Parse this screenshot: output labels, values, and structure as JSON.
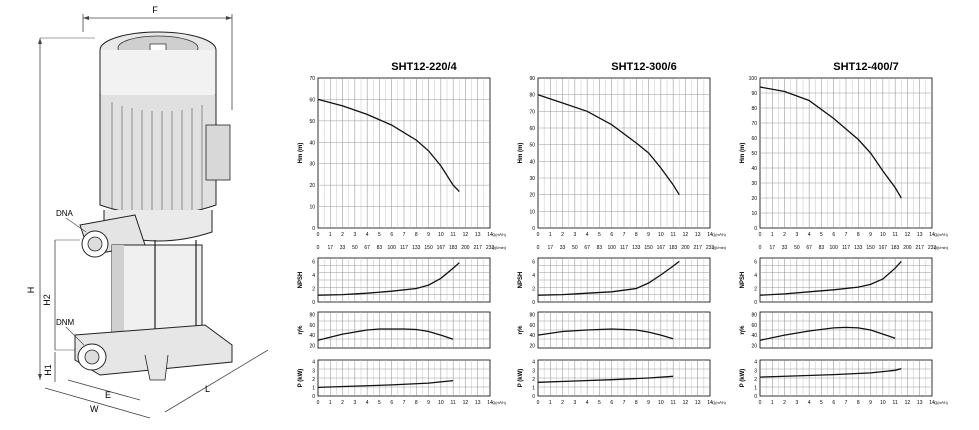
{
  "dimensions": {
    "F": "F",
    "H": "H",
    "H2": "H2",
    "H1": "H1",
    "E": "E",
    "W": "W",
    "L": "L",
    "DNA": "DNA",
    "DNM": "DNM"
  },
  "axis_labels": {
    "head": "Hm  (m)",
    "npsh": "NPSH",
    "eff": "η%",
    "power": "P  (kW)",
    "q_m3h": "Q(m³/h)",
    "q_lmin": "Q(l/min)"
  },
  "q_m3h_ticks": [
    "0",
    "1",
    "2",
    "3",
    "4",
    "5",
    "6",
    "7",
    "8",
    "9",
    "10",
    "11",
    "12",
    "13",
    "14"
  ],
  "q_lmin_ticks": [
    "0",
    "17",
    "33",
    "50",
    "67",
    "83",
    "100",
    "117",
    "133",
    "150",
    "167",
    "183",
    "200",
    "217",
    "233"
  ],
  "npsh_ticks": [
    "0",
    "2",
    "4",
    "6"
  ],
  "eff_ticks": [
    "20",
    "40",
    "60",
    "80"
  ],
  "power_ticks": [
    "0",
    "1",
    "2",
    "3",
    "4"
  ],
  "chart_data": [
    {
      "type": "line",
      "title": "SHT12-220/4",
      "ylabel": "Hm  (m)",
      "xlabel": "Q(m³/h)",
      "ylim": [
        0,
        70
      ],
      "yticks": [
        0,
        10,
        20,
        30,
        40,
        50,
        60,
        70
      ],
      "head": {
        "x": [
          0,
          2,
          4,
          6,
          8,
          9,
          10,
          11,
          11.5
        ],
        "y": [
          60,
          57,
          53,
          48,
          41,
          36,
          29,
          20,
          17
        ]
      },
      "npsh": {
        "x": [
          0,
          2,
          4,
          6,
          8,
          9,
          10,
          11,
          11.5
        ],
        "y": [
          1,
          1.1,
          1.3,
          1.6,
          2,
          2.5,
          3.5,
          5,
          5.8
        ]
      },
      "eff": {
        "x": [
          0,
          2,
          4,
          5,
          6,
          7,
          8,
          9,
          10,
          11
        ],
        "y": [
          30,
          42,
          50,
          52,
          52,
          52,
          51,
          47,
          40,
          32
        ]
      },
      "power": {
        "x": [
          0,
          3,
          6,
          9,
          11
        ],
        "y": [
          1.0,
          1.15,
          1.3,
          1.5,
          1.8
        ]
      }
    },
    {
      "type": "line",
      "title": "SHT12-300/6",
      "ylabel": "Hm  (m)",
      "xlabel": "Q(m³/h)",
      "ylim": [
        0,
        90
      ],
      "yticks": [
        0,
        10,
        20,
        30,
        40,
        50,
        60,
        70,
        80,
        90
      ],
      "head": {
        "x": [
          0,
          2,
          4,
          6,
          8,
          9,
          10,
          11,
          11.5
        ],
        "y": [
          80,
          75,
          70,
          62,
          51,
          45,
          36,
          26,
          20
        ]
      },
      "npsh": {
        "x": [
          0,
          2,
          4,
          6,
          8,
          9,
          10,
          11,
          11.5
        ],
        "y": [
          1,
          1.1,
          1.3,
          1.5,
          2,
          2.8,
          4,
          5.3,
          6
        ]
      },
      "eff": {
        "x": [
          0,
          2,
          4,
          6,
          8,
          9,
          10,
          11
        ],
        "y": [
          40,
          47,
          50,
          52,
          50,
          46,
          40,
          33
        ]
      },
      "power": {
        "x": [
          0,
          3,
          6,
          9,
          11
        ],
        "y": [
          1.6,
          1.75,
          1.9,
          2.1,
          2.3
        ]
      }
    },
    {
      "type": "line",
      "title": "SHT12-400/7",
      "ylabel": "Hm  (m)",
      "xlabel": "Q(m³/h)",
      "ylim": [
        0,
        100
      ],
      "yticks": [
        0,
        10,
        20,
        30,
        40,
        50,
        60,
        70,
        80,
        90,
        100
      ],
      "head": {
        "x": [
          0,
          2,
          4,
          6,
          8,
          9,
          10,
          11,
          11.5
        ],
        "y": [
          94,
          91,
          85,
          73,
          59,
          50,
          38,
          27,
          20
        ]
      },
      "npsh": {
        "x": [
          0,
          2,
          4,
          6,
          8,
          9,
          10,
          11,
          11.5
        ],
        "y": [
          1,
          1.2,
          1.5,
          1.8,
          2.2,
          2.6,
          3.4,
          5,
          6
        ]
      },
      "eff": {
        "x": [
          0,
          2,
          4,
          6,
          7,
          8,
          9,
          10,
          11
        ],
        "y": [
          30,
          40,
          48,
          54,
          55,
          54,
          50,
          42,
          34
        ]
      },
      "power": {
        "x": [
          0,
          3,
          6,
          9,
          11,
          11.5
        ],
        "y": [
          2.2,
          2.35,
          2.5,
          2.7,
          3.0,
          3.2
        ]
      }
    }
  ]
}
